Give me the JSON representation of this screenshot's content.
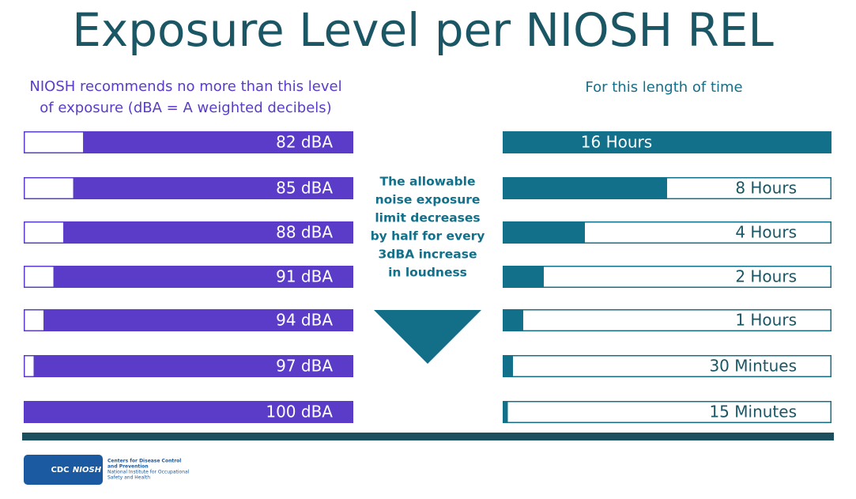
{
  "title": "Exposure Level per NIOSH REL",
  "chart_data": [
    {
      "type": "bar",
      "orientation": "horizontal",
      "anchor": "right",
      "subtitle": [
        "NIOSH recommends no more than this level",
        "of exposure (dBA = A weighted decibels)"
      ],
      "values": [
        82,
        85,
        88,
        91,
        94,
        97,
        100
      ],
      "value_labels": [
        "82 dBA",
        "85 dBA",
        "88 dBA",
        "91 dBA",
        "94 dBA",
        "97 dBA",
        "100 dBA"
      ],
      "color": "#5a3cc8",
      "xlim": [
        0,
        100
      ]
    },
    {
      "type": "bar",
      "orientation": "horizontal",
      "anchor": "left",
      "subtitle": [
        "For this length of time"
      ],
      "values": [
        16,
        8,
        4,
        2,
        1,
        0.5,
        0.25
      ],
      "value_labels": [
        "16 Hours",
        "8 Hours",
        "4 Hours",
        "2 Hours",
        "1 Hours",
        "30 Mintues",
        "15 Minutes"
      ],
      "color": "#12708a",
      "xlim": [
        0,
        16
      ]
    }
  ],
  "note": [
    "The allowable",
    "noise exposure",
    "limit decreases",
    "by half for every",
    "3dBA increase",
    "in loudness"
  ],
  "footer": {
    "logo_cdc": "CDC",
    "logo_niosh": "NIOSH",
    "agency": [
      "Centers for Disease Control",
      "and Prevention",
      "National Institute for Occupational",
      "Safety and Health"
    ]
  }
}
